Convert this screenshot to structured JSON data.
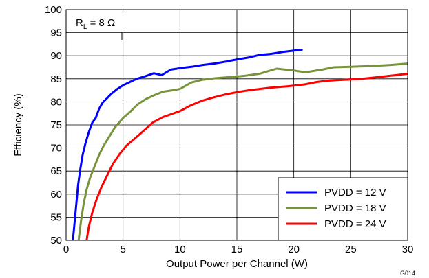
{
  "chart_data": {
    "type": "line",
    "title": "",
    "xlabel": "Output Power per Channel (W)",
    "ylabel": "Efficiency (%)",
    "xlim": [
      0,
      30
    ],
    "ylim": [
      50,
      100
    ],
    "xticks": [
      0,
      5,
      10,
      15,
      20,
      25,
      30
    ],
    "yticks": [
      50,
      55,
      60,
      65,
      70,
      75,
      80,
      85,
      90,
      95,
      100
    ],
    "grid": true,
    "legend_position": "bottom-right",
    "annotation": {
      "main": "R",
      "sub": "L",
      "rest": " = 8 Ω"
    },
    "figure_id": "G014",
    "series": [
      {
        "name": "PVDD = 12 V",
        "color": "#0000ff",
        "points": [
          [
            0.6,
            50
          ],
          [
            0.75,
            54
          ],
          [
            0.9,
            58
          ],
          [
            1.05,
            62
          ],
          [
            1.25,
            65.5
          ],
          [
            1.45,
            68.5
          ],
          [
            1.7,
            71
          ],
          [
            2.0,
            73.5
          ],
          [
            2.3,
            75.5
          ],
          [
            2.6,
            76.5
          ],
          [
            2.9,
            78.5
          ],
          [
            3.2,
            79.8
          ],
          [
            3.6,
            80.8
          ],
          [
            4.0,
            81.8
          ],
          [
            4.5,
            82.8
          ],
          [
            5.0,
            83.6
          ],
          [
            5.6,
            84.3
          ],
          [
            6.2,
            85
          ],
          [
            7.0,
            85.6
          ],
          [
            7.7,
            86.2
          ],
          [
            8.4,
            85.8
          ],
          [
            9.2,
            87
          ],
          [
            10.0,
            87.3
          ],
          [
            11.0,
            87.6
          ],
          [
            12.0,
            88
          ],
          [
            13.0,
            88.3
          ],
          [
            14.0,
            88.7
          ],
          [
            15.0,
            89.2
          ],
          [
            16.0,
            89.6
          ],
          [
            17.0,
            90.2
          ],
          [
            18.0,
            90.4
          ],
          [
            19.0,
            90.8
          ],
          [
            20.0,
            91.1
          ],
          [
            20.7,
            91.3
          ]
        ]
      },
      {
        "name": "PVDD = 18 V",
        "color": "#77933c",
        "points": [
          [
            1.1,
            50
          ],
          [
            1.3,
            54
          ],
          [
            1.55,
            58
          ],
          [
            1.8,
            61
          ],
          [
            2.1,
            63.5
          ],
          [
            2.5,
            66
          ],
          [
            2.9,
            68.5
          ],
          [
            3.3,
            70.5
          ],
          [
            3.8,
            72.5
          ],
          [
            4.3,
            74.5
          ],
          [
            5.0,
            76.5
          ],
          [
            5.6,
            77.8
          ],
          [
            6.3,
            79.5
          ],
          [
            7.0,
            80.6
          ],
          [
            7.8,
            81.5
          ],
          [
            8.5,
            82.2
          ],
          [
            9.3,
            82.5
          ],
          [
            10.0,
            82.8
          ],
          [
            11.0,
            84.2
          ],
          [
            12.0,
            84.8
          ],
          [
            13.0,
            85.1
          ],
          [
            14.0,
            85.3
          ],
          [
            15.5,
            85.6
          ],
          [
            17.0,
            86.1
          ],
          [
            18.5,
            87.2
          ],
          [
            20.0,
            86.8
          ],
          [
            21.0,
            86.4
          ],
          [
            22.5,
            87
          ],
          [
            23.5,
            87.5
          ],
          [
            25.0,
            87.6
          ],
          [
            27.0,
            87.8
          ],
          [
            28.5,
            88
          ],
          [
            30.0,
            88.3
          ]
        ]
      },
      {
        "name": "PVDD = 24 V",
        "color": "#ff0000",
        "points": [
          [
            1.8,
            50
          ],
          [
            2.0,
            53
          ],
          [
            2.3,
            56
          ],
          [
            2.7,
            59
          ],
          [
            3.1,
            61.5
          ],
          [
            3.6,
            64
          ],
          [
            4.1,
            66.5
          ],
          [
            4.7,
            68.7
          ],
          [
            5.3,
            70.5
          ],
          [
            6.0,
            72
          ],
          [
            6.8,
            73.7
          ],
          [
            7.6,
            75.5
          ],
          [
            8.5,
            76.7
          ],
          [
            9.2,
            77.3
          ],
          [
            10.0,
            78
          ],
          [
            11.0,
            79.3
          ],
          [
            12.0,
            80.3
          ],
          [
            13.0,
            81
          ],
          [
            14.0,
            81.6
          ],
          [
            15.0,
            82.1
          ],
          [
            16.0,
            82.5
          ],
          [
            17.0,
            82.8
          ],
          [
            18.0,
            83.1
          ],
          [
            19.5,
            83.4
          ],
          [
            21.0,
            83.8
          ],
          [
            22.0,
            84.3
          ],
          [
            23.0,
            84.6
          ],
          [
            24.5,
            84.8
          ],
          [
            26.0,
            85
          ],
          [
            27.5,
            85.4
          ],
          [
            29.0,
            85.8
          ],
          [
            30.0,
            86.1
          ]
        ]
      }
    ]
  }
}
